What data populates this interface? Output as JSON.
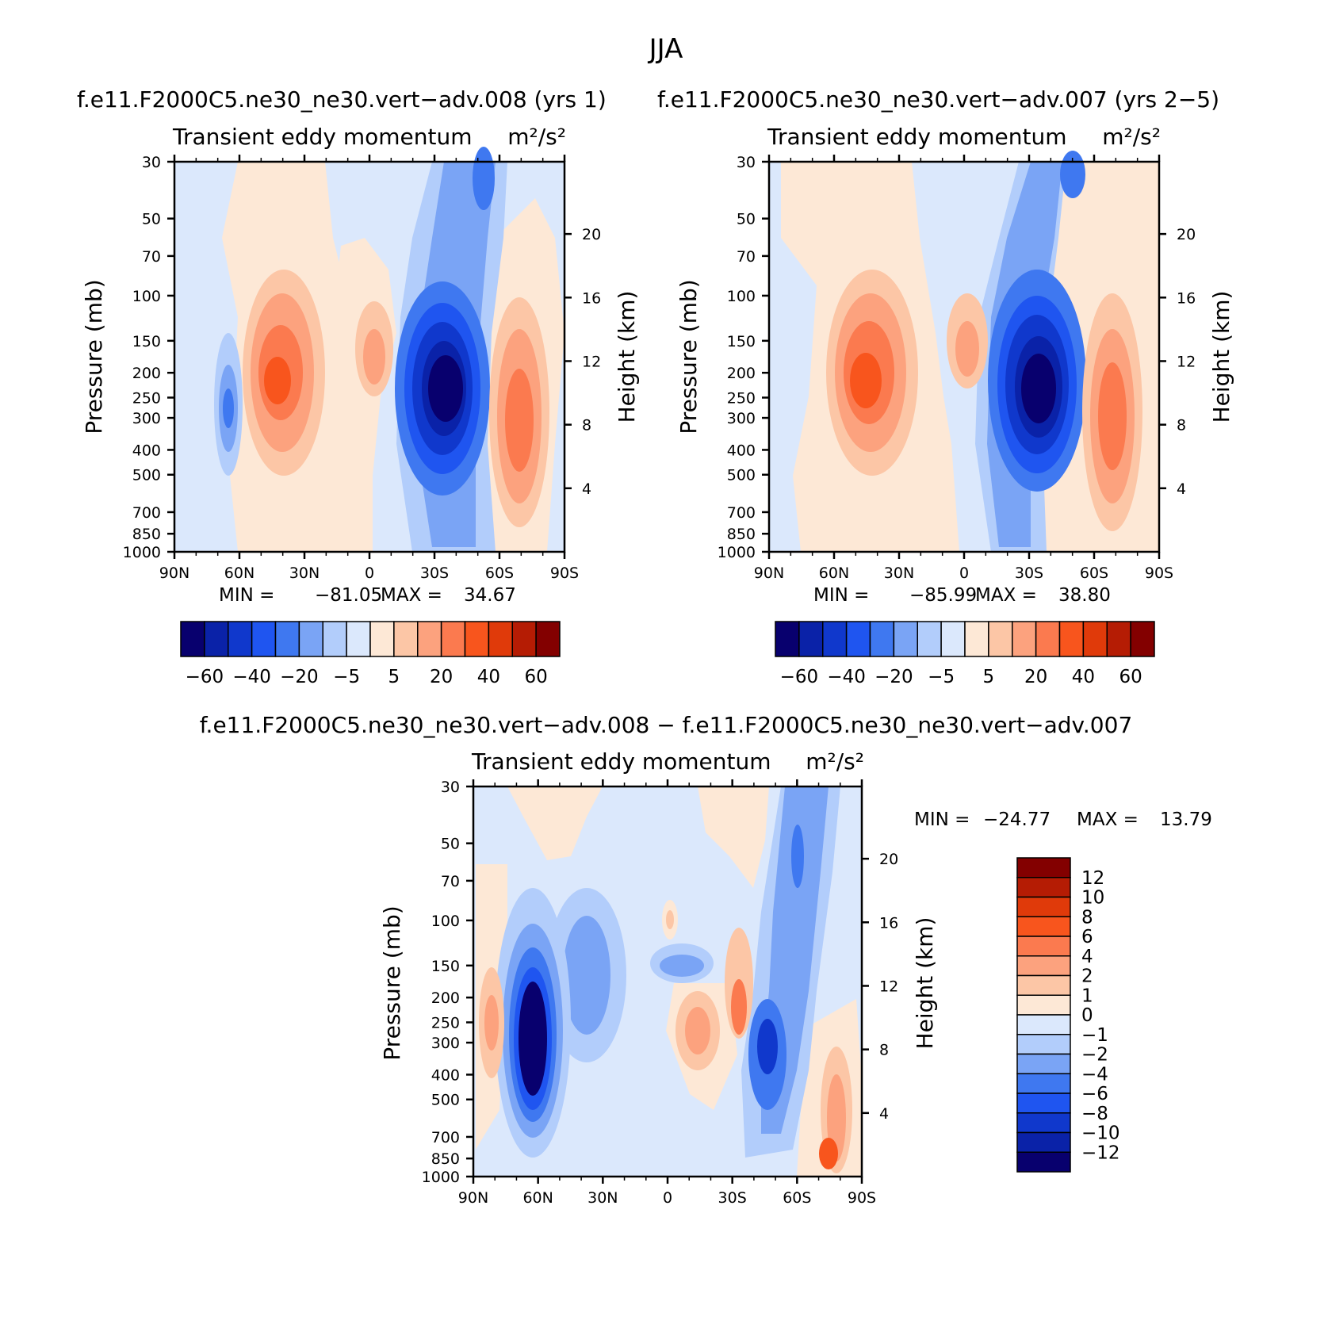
{
  "figure": {
    "season": "JJA",
    "colors": {
      "neg": [
        "#08006e",
        "#0a22a8",
        "#1038cc",
        "#1f55f0",
        "#3f78f0",
        "#7aa4f5",
        "#b2cdfb",
        "#dbe8fc"
      ],
      "pos": [
        "#fde8d6",
        "#fcc6a6",
        "#fca27e",
        "#fb7a4f",
        "#f8551d",
        "#e03a0a",
        "#b51c04",
        "#830000"
      ]
    }
  },
  "chart_data": [
    {
      "type": "heatmap",
      "title": "f.e11.F2000C5.ne30_ne30.vert−adv.008 (yrs 1)",
      "subtitle": "Transient eddy momentum",
      "units": "m²/s²",
      "ylabel": "Pressure (mb)",
      "ylabel_right": "Height (km)",
      "x_ticks": [
        "90N",
        "60N",
        "30N",
        "0",
        "30S",
        "60S",
        "90S"
      ],
      "y_ticks": [
        "30",
        "50",
        "70",
        "100",
        "150",
        "200",
        "250",
        "300",
        "400",
        "500",
        "700",
        "850",
        "1000"
      ],
      "y2_ticks": [
        "20",
        "16",
        "12",
        "8",
        "4"
      ],
      "ylim_mb": [
        1000,
        30
      ],
      "min_label": "MIN =",
      "min": "−81.05",
      "max_label": "MAX =",
      "max": "34.67",
      "colorbar_labels": [
        "−60",
        "−40",
        "−20",
        "−5",
        "5",
        "20",
        "40",
        "60"
      ],
      "features": [
        {
          "lat": -30,
          "p": 270,
          "value": -81.05
        },
        {
          "lat": 45,
          "p": 210,
          "value": 34.7
        },
        {
          "lat": -65,
          "p": 300,
          "value": 30
        },
        {
          "lat": 0,
          "p": 190,
          "value": 18
        },
        {
          "lat": 65,
          "p": 280,
          "value": -25
        }
      ]
    },
    {
      "type": "heatmap",
      "title": "f.e11.F2000C5.ne30_ne30.vert−adv.007 (yrs 2−5)",
      "subtitle": "Transient eddy momentum",
      "units": "m²/s²",
      "ylabel": "Pressure (mb)",
      "ylabel_right": "Height (km)",
      "x_ticks": [
        "90N",
        "60N",
        "30N",
        "0",
        "30S",
        "60S",
        "90S"
      ],
      "y_ticks": [
        "30",
        "50",
        "70",
        "100",
        "150",
        "200",
        "250",
        "300",
        "400",
        "500",
        "700",
        "850",
        "1000"
      ],
      "y2_ticks": [
        "20",
        "16",
        "12",
        "8",
        "4"
      ],
      "ylim_mb": [
        1000,
        30
      ],
      "min_label": "MIN =",
      "min": "−85.99",
      "max_label": "MAX =",
      "max": "38.80",
      "colorbar_labels": [
        "−60",
        "−40",
        "−20",
        "−5",
        "5",
        "20",
        "40",
        "60"
      ],
      "features": [
        {
          "lat": -33,
          "p": 270,
          "value": -85.99
        },
        {
          "lat": 45,
          "p": 220,
          "value": 38.8
        },
        {
          "lat": -67,
          "p": 300,
          "value": 30
        },
        {
          "lat": 0,
          "p": 170,
          "value": 20
        }
      ]
    },
    {
      "type": "heatmap",
      "title": "f.e11.F2000C5.ne30_ne30.vert−adv.008 − f.e11.F2000C5.ne30_ne30.vert−adv.007",
      "subtitle": "Transient eddy momentum",
      "units": "m²/s²",
      "ylabel": "Pressure (mb)",
      "ylabel_right": "Height (km)",
      "x_ticks": [
        "90N",
        "60N",
        "30N",
        "0",
        "30S",
        "60S",
        "90S"
      ],
      "y_ticks": [
        "30",
        "50",
        "70",
        "100",
        "150",
        "200",
        "250",
        "300",
        "400",
        "500",
        "700",
        "850",
        "1000"
      ],
      "y2_ticks": [
        "20",
        "16",
        "12",
        "8",
        "4"
      ],
      "ylim_mb": [
        1000,
        30
      ],
      "min_label": "MIN =",
      "min": "−24.77",
      "max_label": "MAX =",
      "max": "13.79",
      "colorbar_labels": [
        "12",
        "10",
        "8",
        "6",
        "4",
        "2",
        "1",
        "0",
        "−1",
        "−2",
        "−4",
        "−6",
        "−8",
        "−10",
        "−12"
      ],
      "features": [
        {
          "lat": 60,
          "p": 280,
          "value": -24.77
        },
        {
          "lat": 80,
          "p": 240,
          "value": 6
        },
        {
          "lat": -45,
          "p": 300,
          "value": -12
        },
        {
          "lat": -35,
          "p": 250,
          "value": 8
        },
        {
          "lat": -80,
          "p": 800,
          "value": 13.79
        }
      ]
    }
  ]
}
